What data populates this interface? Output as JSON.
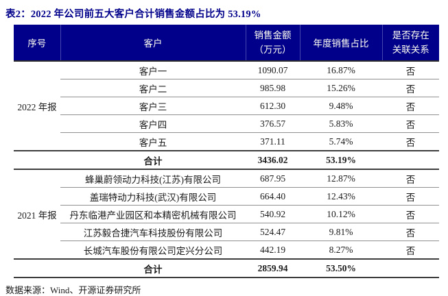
{
  "title": "表2：2022 年公司前五大客户合计销售金额占比为 53.19%",
  "source_note": "数据来源：Wind、开源证券研究所",
  "colors": {
    "header_bg": "#00008B",
    "header_text": "#FFFFF2",
    "title_text": "#00008B",
    "body_text": "#1A1A1A",
    "thin_line": "#8F8F8F",
    "thick_line": "#3C3C3C"
  },
  "table": {
    "header": {
      "seq": "序号",
      "customer": "客户",
      "amount_line1": "销售金额",
      "amount_line2": "（万元）",
      "share": "年度销售占比",
      "related_line1": "是否存在",
      "related_line2": "关联关系"
    },
    "sections": [
      {
        "period": "2022 年报",
        "rows": [
          {
            "customer": "客户一",
            "amount": "1090.07",
            "share": "16.87%",
            "related": "否"
          },
          {
            "customer": "客户二",
            "amount": "985.98",
            "share": "15.26%",
            "related": "否"
          },
          {
            "customer": "客户三",
            "amount": "612.30",
            "share": "9.48%",
            "related": "否"
          },
          {
            "customer": "客户四",
            "amount": "376.57",
            "share": "5.83%",
            "related": "否"
          },
          {
            "customer": "客户五",
            "amount": "371.11",
            "share": "5.74%",
            "related": "否"
          }
        ],
        "total": {
          "label": "合计",
          "amount": "3436.02",
          "share": "53.19%"
        }
      },
      {
        "period": "2021 年报",
        "rows": [
          {
            "customer": "蜂巢蔚领动力科技(江苏)有限公司",
            "amount": "687.95",
            "share": "12.87%",
            "related": "否"
          },
          {
            "customer": "盖瑞特动力科技(武汉)有限公司",
            "amount": "664.40",
            "share": "12.43%",
            "related": "否"
          },
          {
            "customer": "丹东临港产业园区和本精密机械有限公司",
            "amount": "540.92",
            "share": "10.12%",
            "related": "否"
          },
          {
            "customer": "江苏毅合捷汽车科技股份有限公司",
            "amount": "524.47",
            "share": "9.81%",
            "related": "否"
          },
          {
            "customer": "长城汽车股份有限公司定兴分公司",
            "amount": "442.19",
            "share": "8.27%",
            "related": "否"
          }
        ],
        "total": {
          "label": "合计",
          "amount": "2859.94",
          "share": "53.50%"
        }
      }
    ]
  }
}
